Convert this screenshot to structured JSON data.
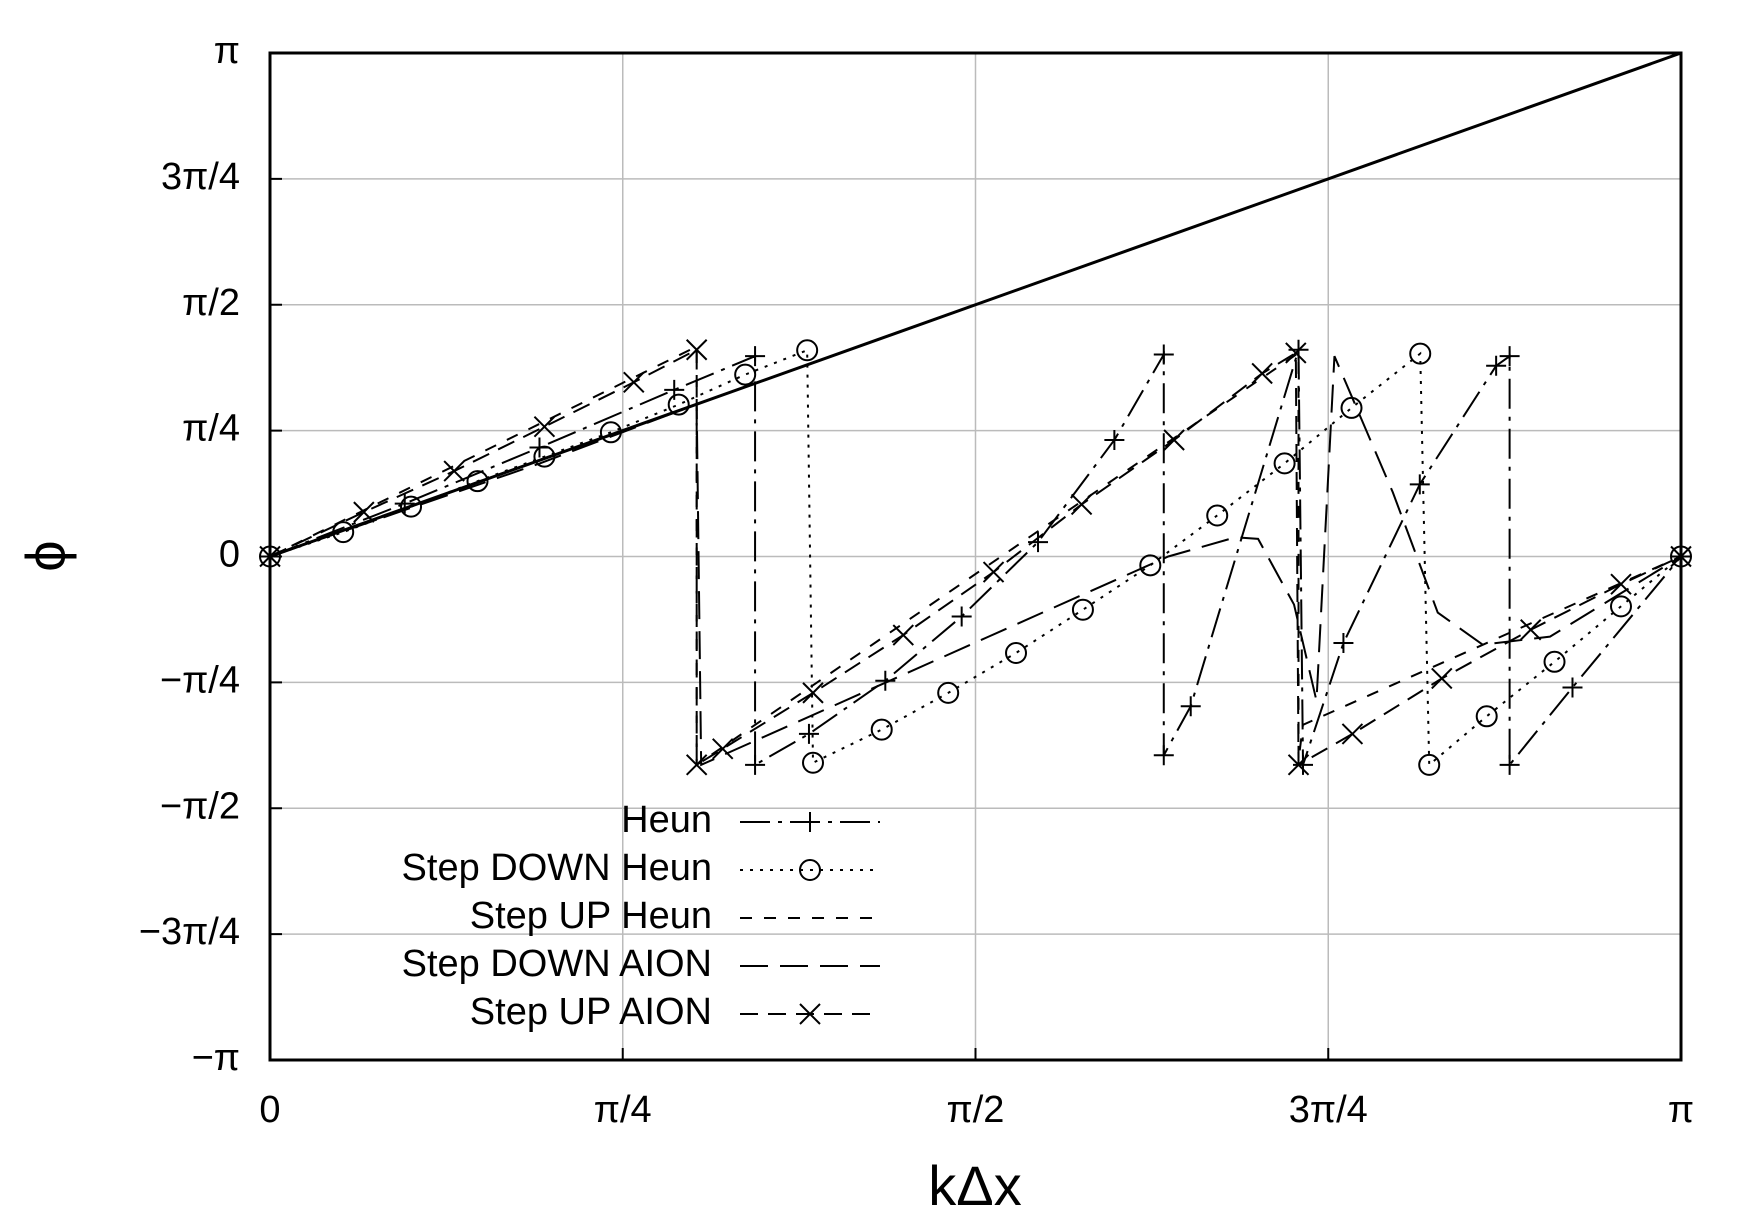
{
  "chart_data": {
    "type": "line",
    "xlabel": "kΔx",
    "ylabel": "ϕ",
    "xlim": [
      0,
      3.1416
    ],
    "ylim": [
      -3.1416,
      3.1416
    ],
    "xticks": [
      0,
      {
        "value": 0.7854,
        "label": "π/4"
      },
      {
        "value": 1.5708,
        "label": "π/2"
      },
      {
        "value": 2.3562,
        "label": "3π/4"
      },
      {
        "value": 3.1416,
        "label": "π"
      }
    ],
    "yticks": [
      {
        "value": -3.1416,
        "label": "−π"
      },
      {
        "value": -2.3562,
        "label": "−3π/4"
      },
      {
        "value": -1.5708,
        "label": "−π/2"
      },
      {
        "value": -0.7854,
        "label": "−π/4"
      },
      0,
      {
        "value": 0.7854,
        "label": "π/4"
      },
      {
        "value": 1.5708,
        "label": "π/2"
      },
      {
        "value": 2.3562,
        "label": "3π/4"
      },
      {
        "value": 3.1416,
        "label": "π"
      }
    ],
    "grid": true,
    "legend": "lower left",
    "series": [
      {
        "color": "#000",
        "width": 3,
        "dash": "none",
        "marker": "none",
        "x": [
          0,
          3.1416
        ],
        "values": [
          0,
          3.1416
        ]
      },
      {
        "name": "Heun",
        "color": "#000",
        "width": 2,
        "dash": "30,8,4,8",
        "marker": "plus",
        "x": [
          0,
          0.3,
          0.6,
          0.9,
          1.08,
          1.08,
          1.2,
          1.37,
          1.54,
          1.71,
          1.88,
          1.99,
          1.99,
          2.05,
          2.29,
          2.3,
          2.39,
          2.56,
          2.73,
          2.76,
          2.76,
          2.9,
          3.1416
        ],
        "values": [
          0,
          0.33,
          0.68,
          1.04,
          1.25,
          -1.3,
          -1.107,
          -0.775,
          -0.374,
          0.09,
          0.727,
          1.26,
          -1.24,
          -0.934,
          1.29,
          -1.3,
          -0.54,
          0.45,
          1.19,
          1.25,
          -1.3,
          -0.817,
          0
        ]
      },
      {
        "name": "Step DOWN Heun",
        "color": "#000",
        "width": 2,
        "dash": "3,7",
        "marker": "circle",
        "x": [
          0,
          0.163,
          0.314,
          0.462,
          0.611,
          0.759,
          0.91,
          1.058,
          1.196,
          1.209,
          1.362,
          1.51,
          1.661,
          1.81,
          1.96,
          2.109,
          2.259,
          2.408,
          2.561,
          2.581,
          2.709,
          2.86,
          3.008,
          3.1416
        ],
        "values": [
          0,
          0.152,
          0.311,
          0.47,
          0.623,
          0.775,
          0.948,
          1.135,
          1.287,
          -1.287,
          -1.08,
          -0.851,
          -0.602,
          -0.332,
          -0.055,
          0.256,
          0.581,
          0.927,
          1.266,
          -1.3,
          -0.997,
          -0.657,
          -0.311,
          0
        ]
      },
      {
        "name": "Step UP Heun",
        "color": "#000",
        "width": 2,
        "dash": "12,12",
        "marker": "none",
        "x": [
          0,
          0.95,
          0.95,
          2.29,
          2.29,
          2.3,
          3.1416
        ],
        "values": [
          0,
          1.31,
          -1.3,
          1.27,
          -1.27,
          -1.05,
          0
        ]
      },
      {
        "name": "Step DOWN AION",
        "color": "#000",
        "width": 2,
        "dash": "28,12",
        "marker": "none",
        "x": [
          0,
          0.6,
          0.95,
          0.96,
          1.6,
          2.0,
          2.15,
          2.2,
          2.28,
          2.33,
          2.37,
          2.5,
          2.6,
          2.7,
          2.85,
          3.1416
        ],
        "values": [
          0,
          0.58,
          0.95,
          -1.3,
          -0.5,
          0,
          0.12,
          0.11,
          -0.3,
          -0.9,
          1.25,
          0.4,
          -0.35,
          -0.55,
          -0.5,
          0
        ]
      },
      {
        "name": "Step UP AION",
        "color": "#000",
        "width": 2,
        "dash": "18,10",
        "marker": "cross",
        "x": [
          0,
          0.209,
          0.41,
          0.611,
          0.81,
          0.95,
          0.95,
          1.008,
          1.209,
          1.41,
          1.611,
          1.807,
          2.013,
          2.209,
          2.284,
          2.29,
          2.41,
          2.609,
          2.807,
          3.008,
          3.1416
        ],
        "values": [
          0,
          0.277,
          0.533,
          0.81,
          1.087,
          1.29,
          -1.3,
          -1.2,
          -0.851,
          -0.49,
          -0.097,
          0.325,
          0.727,
          1.142,
          1.27,
          -1.3,
          -1.107,
          -0.761,
          -0.457,
          -0.173,
          0
        ]
      }
    ]
  }
}
